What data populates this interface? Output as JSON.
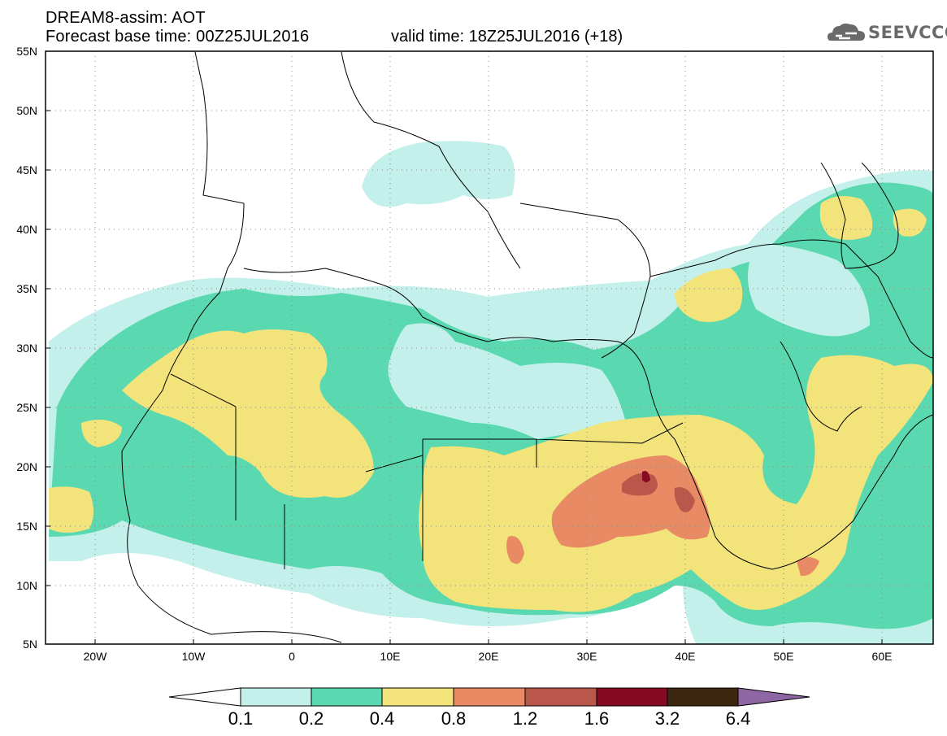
{
  "header": {
    "title": "DREAM8-assim: AOT",
    "base_time": "Forecast base time: 00Z25JUL2016",
    "valid_time": "valid time: 18Z25JUL2016 (+18)"
  },
  "logo": {
    "text": "SEEVCCC",
    "icon": "cloud-logo-icon"
  },
  "map": {
    "lat_ticks": [
      "55N",
      "50N",
      "45N",
      "40N",
      "35N",
      "30N",
      "25N",
      "20N",
      "15N",
      "10N",
      "5N"
    ],
    "lon_ticks": [
      "20W",
      "10W",
      "0",
      "10E",
      "20E",
      "30E",
      "40E",
      "50E",
      "60E"
    ],
    "lat_range": [
      5,
      55
    ],
    "lon_range": [
      -25,
      65
    ],
    "grid": "dotted"
  },
  "colorbar": {
    "labels": [
      "0.1",
      "0.2",
      "0.4",
      "0.8",
      "1.2",
      "1.6",
      "3.2",
      "6.4"
    ],
    "colors": [
      "#ffffff",
      "#c3f0ea",
      "#5ad9b0",
      "#f2e47a",
      "#e88a64",
      "#b9574a",
      "#850a22",
      "#3d2710",
      "#8d66a3"
    ]
  }
}
